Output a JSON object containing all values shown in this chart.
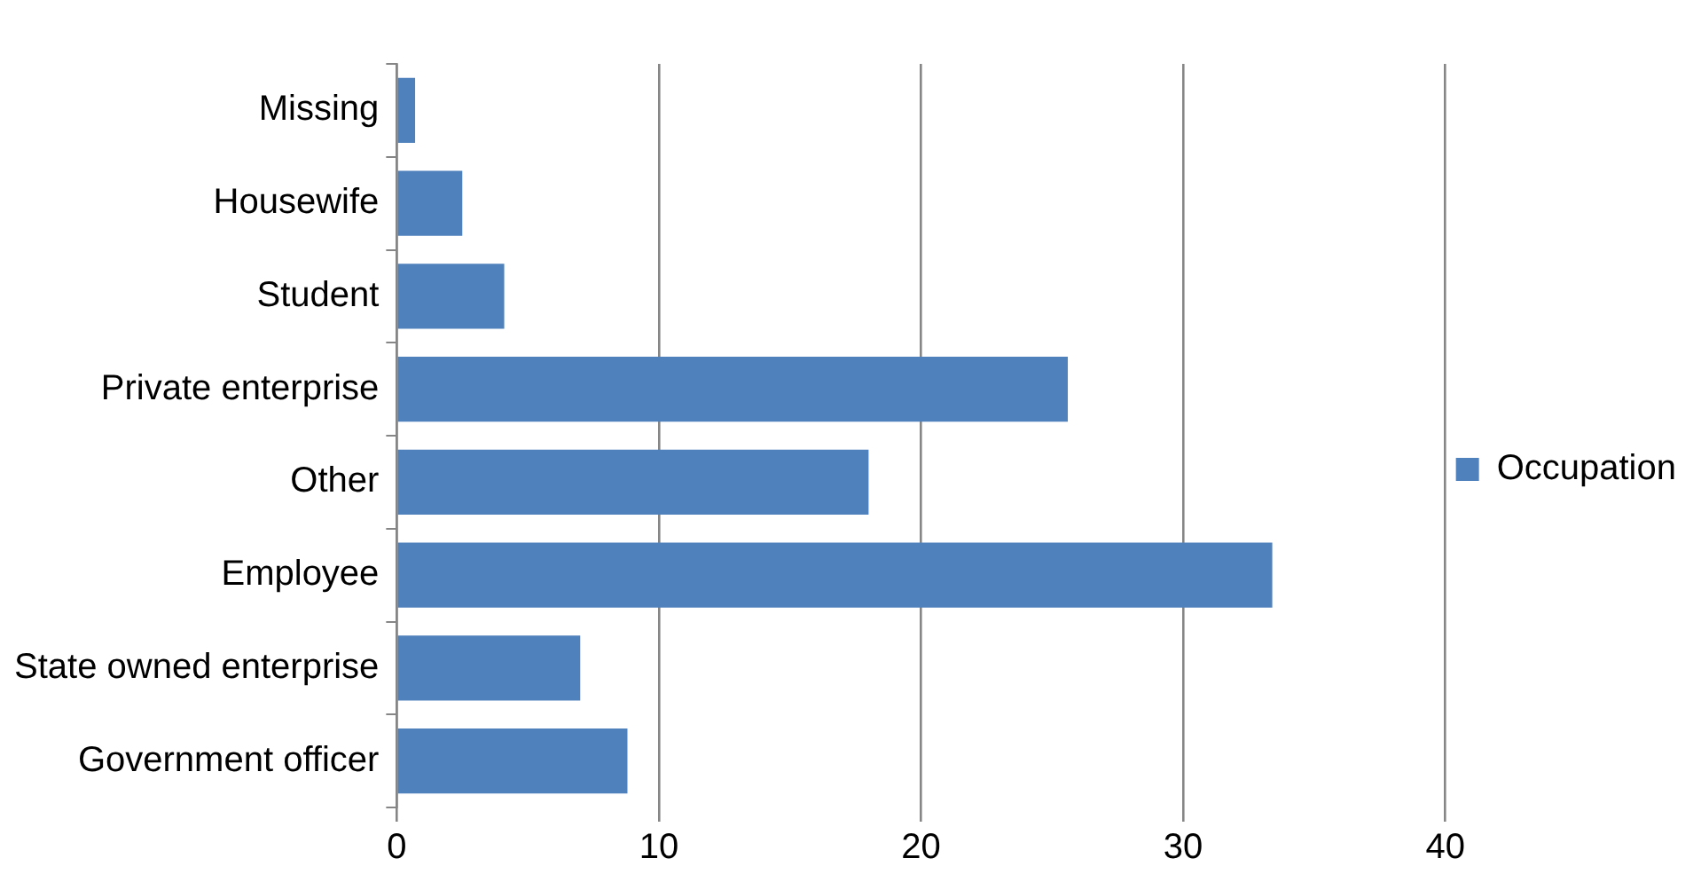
{
  "chart_data": {
    "type": "bar",
    "orientation": "horizontal",
    "categories": [
      "Missing",
      "Housewife",
      "Student",
      "Private enterprise",
      "Other",
      "Employee",
      "State owned enterprise",
      "Government officer"
    ],
    "series": [
      {
        "name": "Occupation",
        "color": "#4f81bd",
        "values": [
          0.7,
          2.5,
          4.1,
          25.6,
          18.0,
          33.4,
          7.0,
          8.8
        ]
      }
    ],
    "xlim": [
      0,
      40
    ],
    "xticks": [
      0,
      10,
      20,
      30,
      40
    ],
    "grid": "x",
    "legend": "right"
  }
}
